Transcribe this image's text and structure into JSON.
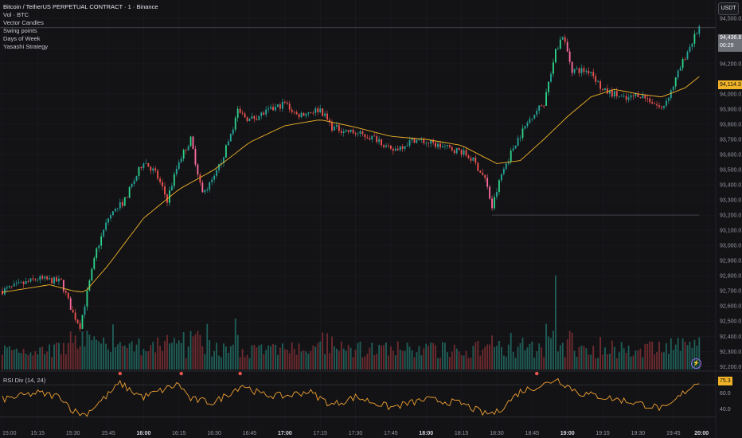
{
  "legend": {
    "title": "Bitcoin / TetherUS PERPETUAL CONTRACT · 1 · Binance",
    "indicators": [
      "Vol · BTC",
      "Vector Candles",
      "Swing points",
      "Days of Week",
      "Yasashi Strategy"
    ]
  },
  "currency_button": "USDT",
  "price_tags": {
    "last_price": "94,436.8",
    "countdown": "00:29",
    "ma_value": "94,114.3",
    "rsi_value": "75.3"
  },
  "rsi_pane": {
    "label": "RSI Div (14, 24)"
  },
  "price_axis_labels": [
    "94,500.0",
    "94,300.0",
    "94,200.0",
    "94,000.0",
    "93,900.0",
    "93,800.0",
    "93,700.0",
    "93,600.0",
    "93,500.0",
    "93,400.0",
    "93,300.0",
    "93,200.0",
    "93,100.0",
    "93,000.0",
    "92,900.0",
    "92,800.0",
    "92,700.0",
    "92,600.0",
    "92,500.0",
    "92,400.0",
    "92,300.0",
    "92,200.0"
  ],
  "rsi_axis_labels": [
    "60.0",
    "40.0"
  ],
  "time_axis_labels": [
    "15:00",
    "15:15",
    "15:30",
    "15:45",
    "16:00",
    "16:15",
    "16:30",
    "16:45",
    "17:00",
    "17:15",
    "17:30",
    "17:45",
    "18:00",
    "18:15",
    "18:30",
    "18:45",
    "19:00",
    "19:15",
    "19:30",
    "19:45",
    "20:00"
  ],
  "colors": {
    "background": "#131316",
    "bull": "#26a69a",
    "bull_vector": "#2ed28a",
    "bear": "#ef5350",
    "bear_vector": "#ff6b9a",
    "ma": "#f0b226",
    "rsi": "#f0a030",
    "grid": "#1e1f24"
  },
  "chart_data": {
    "type": "candlestick",
    "interval": "1 minute",
    "x_range": [
      "14:59",
      "20:03"
    ],
    "y_range": [
      92170,
      94620
    ],
    "price_anchors": [
      [
        "15:00",
        92700
      ],
      [
        "15:15",
        92780
      ],
      [
        "15:25",
        92760
      ],
      [
        "15:30",
        92550
      ],
      [
        "15:33",
        92470
      ],
      [
        "15:40",
        92970
      ],
      [
        "15:45",
        93180
      ],
      [
        "15:52",
        93300
      ],
      [
        "16:00",
        93560
      ],
      [
        "16:05",
        93480
      ],
      [
        "16:10",
        93300
      ],
      [
        "16:15",
        93560
      ],
      [
        "16:20",
        93700
      ],
      [
        "16:25",
        93340
      ],
      [
        "16:30",
        93440
      ],
      [
        "16:35",
        93640
      ],
      [
        "16:40",
        93880
      ],
      [
        "16:45",
        93830
      ],
      [
        "16:55",
        93900
      ],
      [
        "17:00",
        93940
      ],
      [
        "17:05",
        93860
      ],
      [
        "17:15",
        93900
      ],
      [
        "17:20",
        93780
      ],
      [
        "17:30",
        93740
      ],
      [
        "17:40",
        93700
      ],
      [
        "17:45",
        93620
      ],
      [
        "17:55",
        93700
      ],
      [
        "18:05",
        93660
      ],
      [
        "18:15",
        93620
      ],
      [
        "18:20",
        93560
      ],
      [
        "18:25",
        93440
      ],
      [
        "18:28",
        93250
      ],
      [
        "18:32",
        93470
      ],
      [
        "18:38",
        93680
      ],
      [
        "18:45",
        93860
      ],
      [
        "18:50",
        93940
      ],
      [
        "18:55",
        94280
      ],
      [
        "18:58",
        94390
      ],
      [
        "19:02",
        94160
      ],
      [
        "19:10",
        94150
      ],
      [
        "19:15",
        94020
      ],
      [
        "19:20",
        94000
      ],
      [
        "19:25",
        93960
      ],
      [
        "19:30",
        94000
      ],
      [
        "19:35",
        93960
      ],
      [
        "19:40",
        93900
      ],
      [
        "19:44",
        94020
      ],
      [
        "19:50",
        94250
      ],
      [
        "19:56",
        94440
      ]
    ],
    "ma_anchors": [
      [
        "15:00",
        92690
      ],
      [
        "15:20",
        92740
      ],
      [
        "15:30",
        92700
      ],
      [
        "15:35",
        92690
      ],
      [
        "15:45",
        92870
      ],
      [
        "16:00",
        93180
      ],
      [
        "16:15",
        93370
      ],
      [
        "16:30",
        93500
      ],
      [
        "16:45",
        93680
      ],
      [
        "17:00",
        93790
      ],
      [
        "17:15",
        93830
      ],
      [
        "17:30",
        93780
      ],
      [
        "17:45",
        93720
      ],
      [
        "18:00",
        93700
      ],
      [
        "18:15",
        93660
      ],
      [
        "18:30",
        93540
      ],
      [
        "18:40",
        93560
      ],
      [
        "18:50",
        93700
      ],
      [
        "19:00",
        93850
      ],
      [
        "19:10",
        93980
      ],
      [
        "19:20",
        94030
      ],
      [
        "19:30",
        94000
      ],
      [
        "19:40",
        93980
      ],
      [
        "19:50",
        94040
      ],
      [
        "19:56",
        94114
      ]
    ],
    "volume_max_bar_time": "18:55",
    "volume_spike_times": [
      "15:47",
      "16:27",
      "16:39",
      "18:51",
      "18:55"
    ],
    "swing_high_price": 94436.8,
    "swing_low_price": 93200,
    "rsi": {
      "levels": [
        70,
        30
      ],
      "anchors": [
        [
          "15:00",
          52
        ],
        [
          "15:15",
          60
        ],
        [
          "15:25",
          55
        ],
        [
          "15:30",
          38
        ],
        [
          "15:35",
          33
        ],
        [
          "15:45",
          58
        ],
        [
          "15:50",
          72
        ],
        [
          "15:55",
          62
        ],
        [
          "16:00",
          55
        ],
        [
          "16:15",
          71
        ],
        [
          "16:20",
          52
        ],
        [
          "16:30",
          48
        ],
        [
          "16:42",
          70
        ],
        [
          "16:50",
          58
        ],
        [
          "17:00",
          56
        ],
        [
          "17:10",
          62
        ],
        [
          "17:20",
          45
        ],
        [
          "17:30",
          55
        ],
        [
          "17:45",
          42
        ],
        [
          "18:00",
          52
        ],
        [
          "18:15",
          47
        ],
        [
          "18:25",
          34
        ],
        [
          "18:30",
          36
        ],
        [
          "18:40",
          62
        ],
        [
          "18:52",
          72
        ],
        [
          "18:55",
          78
        ],
        [
          "19:05",
          60
        ],
        [
          "19:15",
          55
        ],
        [
          "19:25",
          50
        ],
        [
          "19:35",
          44
        ],
        [
          "19:42",
          40
        ],
        [
          "19:50",
          62
        ],
        [
          "19:56",
          75
        ]
      ],
      "divergence_dot_times": [
        "15:50",
        "16:16",
        "16:41",
        "18:47"
      ]
    }
  }
}
